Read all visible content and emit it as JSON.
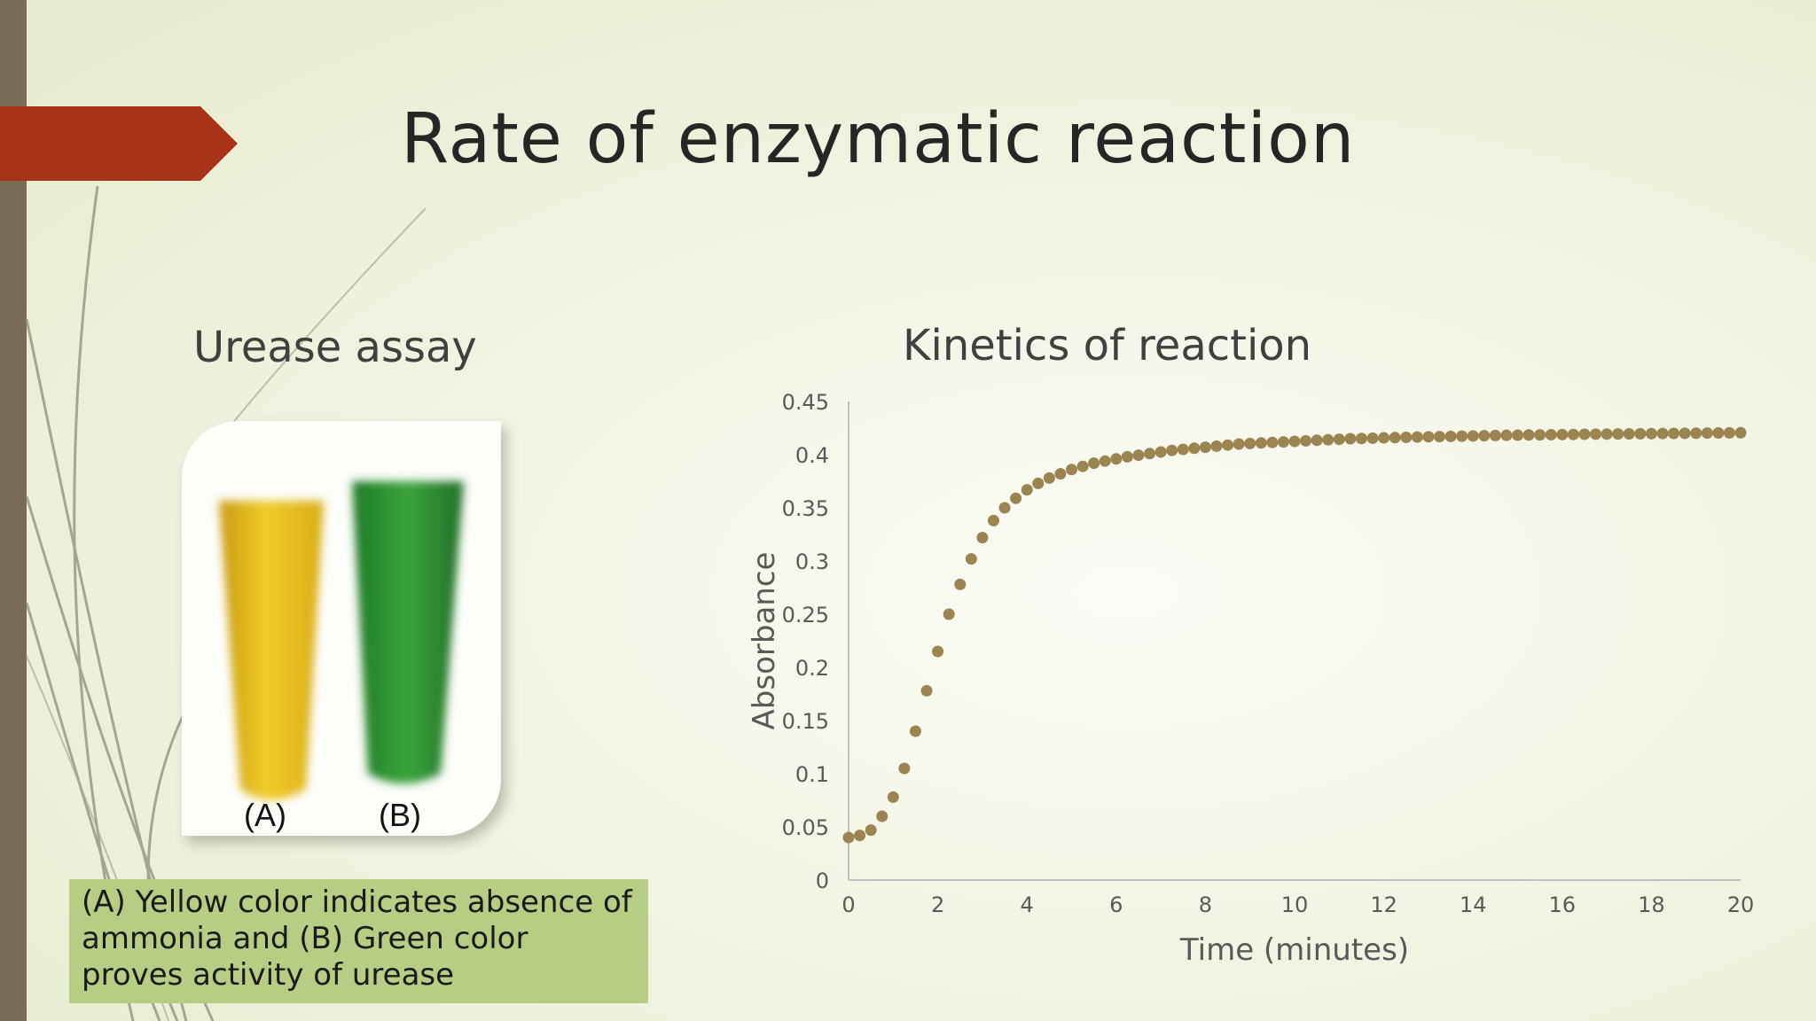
{
  "slide": {
    "title": "Rate of enzymatic reaction",
    "left_heading": "Urease assay",
    "right_heading": "Kinetics of reaction",
    "tube_labels": [
      "(A)",
      "(B)"
    ],
    "caption": "(A) Yellow color indicates absence of ammonia and (B) Green color proves activity of urease",
    "colors": {
      "accent_arrow": "#a83218",
      "left_bar": "#786c56",
      "caption_bg": "#b7cd84",
      "marker": "#9c8450",
      "tube_a": "#e2b91c",
      "tube_b": "#2f8f2f"
    }
  },
  "chart_data": {
    "type": "scatter",
    "title": "Kinetics of reaction",
    "xlabel": "Time (minutes)",
    "ylabel": "Absorbance",
    "xlim": [
      0,
      20
    ],
    "ylim": [
      0,
      0.45
    ],
    "xticks": [
      0,
      2,
      4,
      6,
      8,
      10,
      12,
      14,
      16,
      18,
      20
    ],
    "yticks": [
      0,
      0.05,
      0.1,
      0.15,
      0.2,
      0.25,
      0.3,
      0.35,
      0.4,
      0.45
    ],
    "ytick_labels": [
      "0",
      "0.05",
      "0.1",
      "0.15",
      "0.2",
      "0.25",
      "0.3",
      "0.35",
      "0.4",
      "0.45"
    ],
    "grid": false,
    "legend": "none",
    "series": [
      {
        "x": [
          0,
          0.25,
          0.5,
          0.75,
          1,
          1.25,
          1.5,
          1.75,
          2,
          2.25,
          2.5,
          2.75,
          3,
          3.25,
          3.5,
          3.75,
          4,
          4.25,
          4.5,
          4.75,
          5,
          5.25,
          5.5,
          5.75,
          6,
          6.25,
          6.5,
          6.75,
          7,
          7.25,
          7.5,
          7.75,
          8,
          8.25,
          8.5,
          8.75,
          9,
          9.25,
          9.5,
          9.75,
          10,
          10.25,
          10.5,
          10.75,
          11,
          11.25,
          11.5,
          11.75,
          12,
          12.25,
          12.5,
          12.75,
          13,
          13.25,
          13.5,
          13.75,
          14,
          14.25,
          14.5,
          14.75,
          15,
          15.25,
          15.5,
          15.75,
          16,
          16.25,
          16.5,
          16.75,
          17,
          17.25,
          17.5,
          17.75,
          18,
          18.25,
          18.5,
          18.75,
          19,
          19.25,
          19.5,
          19.75,
          20
        ],
        "y": [
          0.04,
          0.042,
          0.047,
          0.06,
          0.078,
          0.105,
          0.14,
          0.178,
          0.215,
          0.25,
          0.278,
          0.302,
          0.322,
          0.338,
          0.35,
          0.359,
          0.367,
          0.373,
          0.378,
          0.382,
          0.386,
          0.389,
          0.392,
          0.394,
          0.396,
          0.398,
          0.3995,
          0.401,
          0.4025,
          0.404,
          0.405,
          0.406,
          0.407,
          0.408,
          0.409,
          0.41,
          0.4105,
          0.411,
          0.4115,
          0.412,
          0.4125,
          0.413,
          0.4135,
          0.414,
          0.4145,
          0.415,
          0.4152,
          0.4155,
          0.4158,
          0.416,
          0.4163,
          0.4166,
          0.4168,
          0.417,
          0.4172,
          0.4174,
          0.4176,
          0.4178,
          0.418,
          0.4182,
          0.4183,
          0.4185,
          0.4186,
          0.4188,
          0.4189,
          0.419,
          0.4192,
          0.4193,
          0.4194,
          0.4195,
          0.4196,
          0.4197,
          0.4198,
          0.4199,
          0.42,
          0.4201,
          0.4202,
          0.4203,
          0.4204,
          0.4205,
          0.4206
        ]
      }
    ]
  }
}
